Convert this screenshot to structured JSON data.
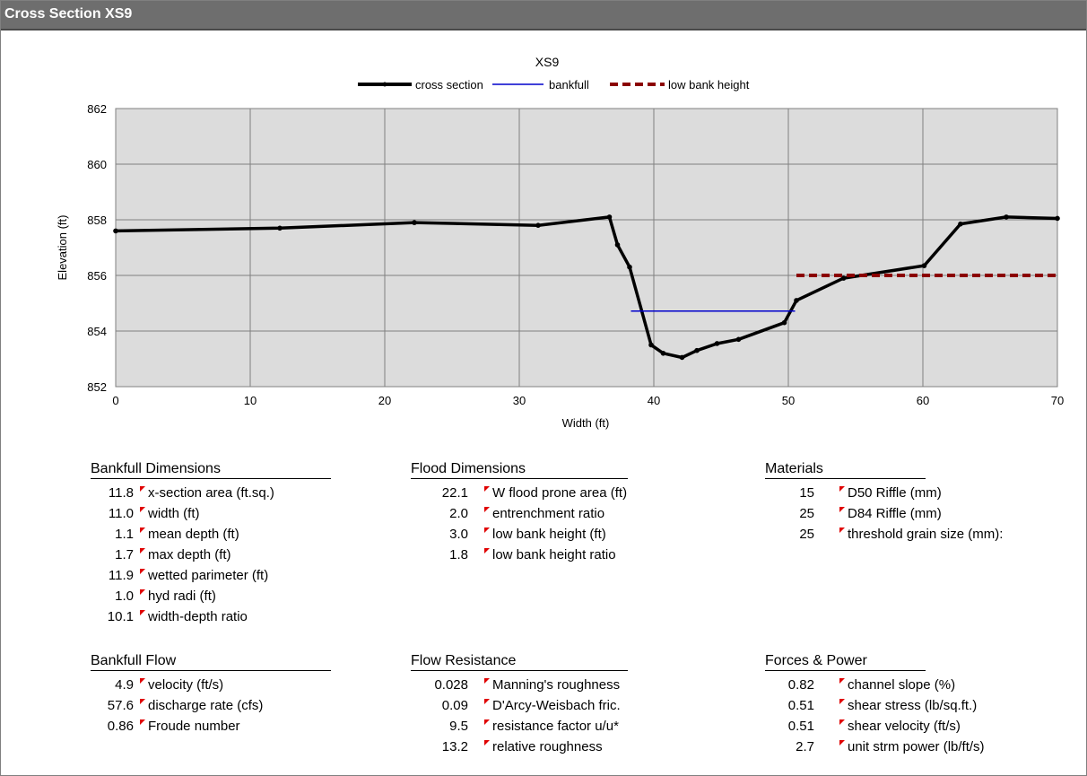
{
  "window": {
    "title": "Cross Section  XS9"
  },
  "chart_data": {
    "type": "line",
    "title": "XS9",
    "xlabel": "Width (ft)",
    "ylabel": "Elevation (ft)",
    "xlim": [
      0,
      70
    ],
    "ylim": [
      852,
      862
    ],
    "xticks": [
      0,
      10,
      20,
      30,
      40,
      50,
      60,
      70
    ],
    "yticks": [
      852,
      854,
      856,
      858,
      860,
      862
    ],
    "grid": true,
    "legend_position": "top",
    "series": [
      {
        "name": "cross section",
        "color": "#000000",
        "style": "solid-markers",
        "points": [
          [
            0,
            857.6
          ],
          [
            12.2,
            857.7
          ],
          [
            22.2,
            857.9
          ],
          [
            31.4,
            857.8
          ],
          [
            36.7,
            858.1
          ],
          [
            37.3,
            857.1
          ],
          [
            38.2,
            856.3
          ],
          [
            39.8,
            853.5
          ],
          [
            40.7,
            853.2
          ],
          [
            42.1,
            853.05
          ],
          [
            43.2,
            853.3
          ],
          [
            44.7,
            853.55
          ],
          [
            46.3,
            853.7
          ],
          [
            49.7,
            854.3
          ],
          [
            50.6,
            855.1
          ],
          [
            54.1,
            855.9
          ],
          [
            60.1,
            856.35
          ],
          [
            62.8,
            857.85
          ],
          [
            66.2,
            858.1
          ],
          [
            70,
            858.05
          ]
        ]
      },
      {
        "name": "bankfull",
        "color": "#0000cc",
        "style": "solid",
        "points": [
          [
            38.3,
            854.72
          ],
          [
            50.5,
            854.72
          ]
        ]
      },
      {
        "name": "low bank height",
        "color": "#8b0000",
        "style": "dashed",
        "points": [
          [
            50.6,
            856.0
          ],
          [
            70,
            856.0
          ]
        ]
      }
    ]
  },
  "tables": [
    {
      "title": "Bankfull Dimensions",
      "rows": [
        {
          "value": "11.8",
          "label": "x-section area (ft.sq.)"
        },
        {
          "value": "11.0",
          "label": "width (ft)"
        },
        {
          "value": "1.1",
          "label": "mean depth (ft)"
        },
        {
          "value": "1.7",
          "label": "max depth (ft)"
        },
        {
          "value": "11.9",
          "label": "wetted parimeter (ft)"
        },
        {
          "value": "1.0",
          "label": "hyd radi (ft)"
        },
        {
          "value": "10.1",
          "label": "width-depth ratio"
        }
      ]
    },
    {
      "title": "Flood Dimensions",
      "rows": [
        {
          "value": "22.1",
          "label": "W flood prone area (ft)"
        },
        {
          "value": "2.0",
          "label": "entrenchment ratio"
        },
        {
          "value": "3.0",
          "label": "low bank height (ft)"
        },
        {
          "value": "1.8",
          "label": "low bank height ratio"
        }
      ]
    },
    {
      "title": "Materials",
      "rows": [
        {
          "value": "15",
          "label": "D50 Riffle (mm)"
        },
        {
          "value": "25",
          "label": "D84 Riffle (mm)"
        },
        {
          "value": "25",
          "label": "threshold grain size (mm):"
        }
      ]
    },
    {
      "title": "Bankfull Flow",
      "rows": [
        {
          "value": "4.9",
          "label": "velocity (ft/s)"
        },
        {
          "value": "57.6",
          "label": "discharge rate (cfs)"
        },
        {
          "value": "0.86",
          "label": "Froude number"
        }
      ]
    },
    {
      "title": "Flow Resistance",
      "rows": [
        {
          "value": "0.028",
          "label": "Manning's roughness"
        },
        {
          "value": "0.09",
          "label": "D'Arcy-Weisbach fric."
        },
        {
          "value": "9.5",
          "label": "resistance factor u/u*"
        },
        {
          "value": "13.2",
          "label": "relative roughness"
        }
      ]
    },
    {
      "title": "Forces & Power",
      "rows": [
        {
          "value": "0.82",
          "label": "channel slope (%)"
        },
        {
          "value": "0.51",
          "label": "shear stress (lb/sq.ft.)"
        },
        {
          "value": "0.51",
          "label": "shear velocity (ft/s)"
        },
        {
          "value": "2.7",
          "label": "unit strm power (lb/ft/s)"
        }
      ]
    }
  ]
}
